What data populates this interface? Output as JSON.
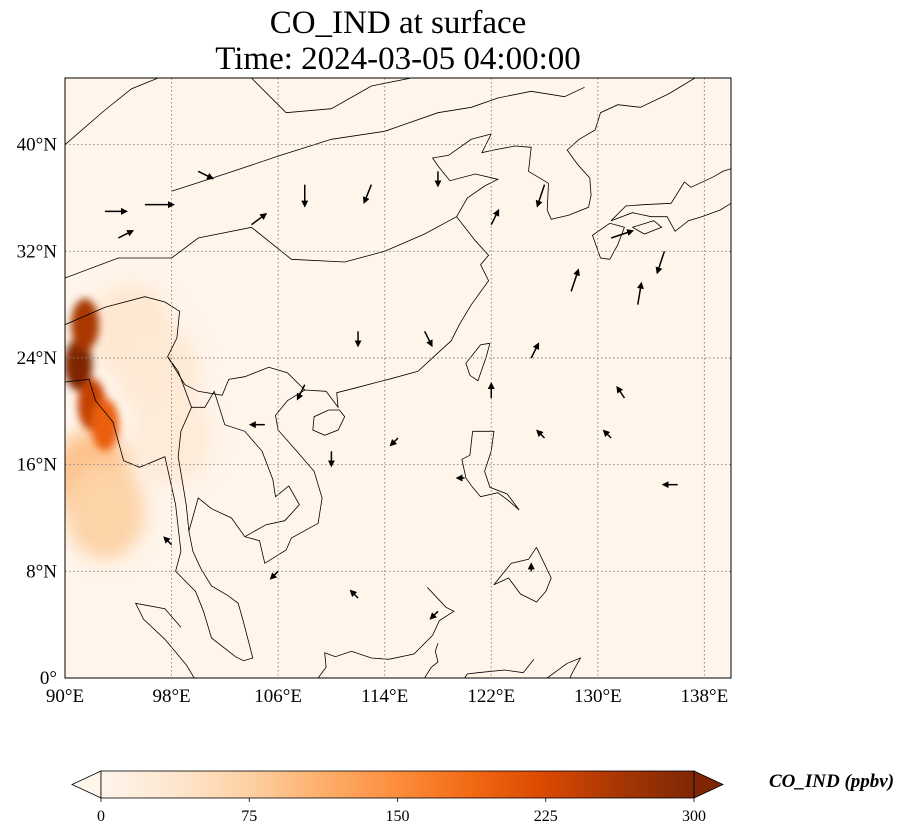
{
  "title": {
    "line1": "CO_IND at surface",
    "line2": "Time: 2024-03-05 04:00:00"
  },
  "map": {
    "lon_range": [
      90,
      140
    ],
    "lat_range": [
      0,
      45
    ],
    "x_ticks": [
      {
        "value": 90,
        "label": "90°E"
      },
      {
        "value": 98,
        "label": "98°E"
      },
      {
        "value": 106,
        "label": "106°E"
      },
      {
        "value": 114,
        "label": "114°E"
      },
      {
        "value": 122,
        "label": "122°E"
      },
      {
        "value": 130,
        "label": "130°E"
      },
      {
        "value": 138,
        "label": "138°E"
      }
    ],
    "y_ticks": [
      {
        "value": 0,
        "label": "0°"
      },
      {
        "value": 8,
        "label": "8°N"
      },
      {
        "value": 16,
        "label": "16°N"
      },
      {
        "value": 24,
        "label": "24°N"
      },
      {
        "value": 32,
        "label": "32°N"
      },
      {
        "value": 40,
        "label": "40°N"
      }
    ],
    "gridlines": true,
    "background_color": "#fff5eb"
  },
  "colorbar": {
    "title": "CO_IND (ppbv)",
    "min": 0,
    "max": 300,
    "extend": "both",
    "ticks": [
      {
        "value": 0,
        "label": "0"
      },
      {
        "value": 75,
        "label": "75"
      },
      {
        "value": 150,
        "label": "150"
      },
      {
        "value": 225,
        "label": "225"
      },
      {
        "value": 300,
        "label": "300"
      }
    ],
    "colors": [
      "#fff5eb",
      "#fee6ce",
      "#fdd0a2",
      "#fdae6b",
      "#fd8d3c",
      "#f16913",
      "#d94801",
      "#a63603",
      "#7f2704"
    ]
  },
  "chart_data": {
    "type": "heatmap",
    "field": "CO_IND",
    "units": "ppbv",
    "high_concentration_regions": [
      {
        "lon": 91,
        "lat": 23.5,
        "value": 300
      },
      {
        "lon": 91.5,
        "lat": 26.5,
        "value": 260
      },
      {
        "lon": 92,
        "lat": 20.5,
        "value": 240
      },
      {
        "lon": 93,
        "lat": 19,
        "value": 200
      },
      {
        "lon": 92,
        "lat": 15,
        "value": 90
      },
      {
        "lon": 93,
        "lat": 12.5,
        "value": 70
      },
      {
        "lon": 95,
        "lat": 26,
        "value": 35
      },
      {
        "lon": 97,
        "lat": 23,
        "value": 30
      },
      {
        "lon": 98,
        "lat": 18,
        "value": 25
      }
    ],
    "wind_vectors": [
      {
        "lon": 93,
        "lat": 35,
        "u": 3,
        "v": 0
      },
      {
        "lon": 94,
        "lat": 33,
        "u": 2,
        "v": 1
      },
      {
        "lon": 96,
        "lat": 35.5,
        "u": 4,
        "v": 0
      },
      {
        "lon": 100,
        "lat": 38,
        "u": 2,
        "v": -1
      },
      {
        "lon": 104,
        "lat": 34,
        "u": 2,
        "v": 1.5
      },
      {
        "lon": 108,
        "lat": 37,
        "u": 0,
        "v": -3
      },
      {
        "lon": 113,
        "lat": 37,
        "u": -1,
        "v": -2.5
      },
      {
        "lon": 118,
        "lat": 38,
        "u": 0,
        "v": -2
      },
      {
        "lon": 122,
        "lat": 34,
        "u": 1,
        "v": 2
      },
      {
        "lon": 126,
        "lat": 37,
        "u": -1,
        "v": -3
      },
      {
        "lon": 131,
        "lat": 33,
        "u": 3,
        "v": 1
      },
      {
        "lon": 135,
        "lat": 32,
        "u": -1,
        "v": -3
      },
      {
        "lon": 128,
        "lat": 29,
        "u": 1,
        "v": 3
      },
      {
        "lon": 133,
        "lat": 28,
        "u": 0.5,
        "v": 3
      },
      {
        "lon": 125,
        "lat": 24,
        "u": 1,
        "v": 2
      },
      {
        "lon": 122,
        "lat": 21,
        "u": 0,
        "v": 2
      },
      {
        "lon": 117,
        "lat": 26,
        "u": 1,
        "v": -2
      },
      {
        "lon": 112,
        "lat": 26,
        "u": 0,
        "v": -2
      },
      {
        "lon": 108,
        "lat": 22,
        "u": -1,
        "v": -2
      },
      {
        "lon": 105,
        "lat": 19,
        "u": -2,
        "v": 0
      },
      {
        "lon": 110,
        "lat": 17,
        "u": 0,
        "v": -2
      },
      {
        "lon": 115,
        "lat": 18,
        "u": -1,
        "v": -1
      },
      {
        "lon": 120,
        "lat": 15,
        "u": -1,
        "v": 0
      },
      {
        "lon": 126,
        "lat": 18,
        "u": -1,
        "v": 1
      },
      {
        "lon": 131,
        "lat": 18,
        "u": -1,
        "v": 1
      },
      {
        "lon": 136,
        "lat": 14.5,
        "u": -2,
        "v": 0
      },
      {
        "lon": 98,
        "lat": 10,
        "u": -1,
        "v": 1
      },
      {
        "lon": 106,
        "lat": 8,
        "u": -1,
        "v": -1
      },
      {
        "lon": 112,
        "lat": 6,
        "u": -1,
        "v": 1
      },
      {
        "lon": 118,
        "lat": 5,
        "u": -1,
        "v": -1
      },
      {
        "lon": 125,
        "lat": 8,
        "u": 0,
        "v": 1
      },
      {
        "lon": 132,
        "lat": 21,
        "u": -1,
        "v": 1.5
      }
    ]
  }
}
